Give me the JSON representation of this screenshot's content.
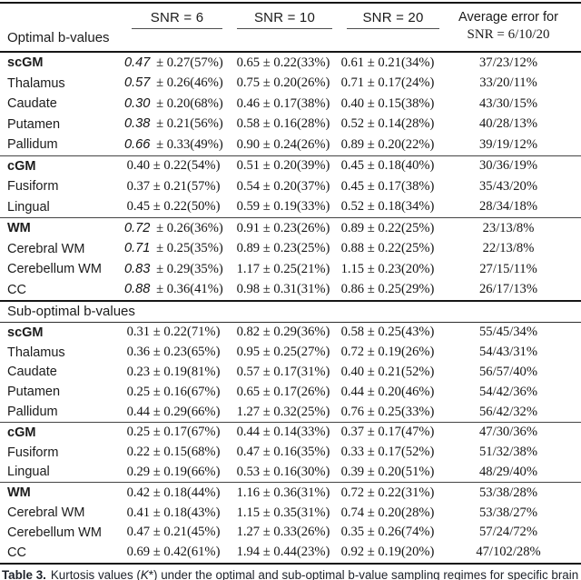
{
  "table": {
    "header": {
      "cols": [
        "SNR = 6",
        "SNR = 10",
        "SNR = 20"
      ],
      "avg_line1": "Average error for",
      "avg_line2": "SNR = 6/10/20"
    },
    "sections": [
      {
        "title": "Optimal b-values",
        "groups": [
          {
            "rows": [
              {
                "label": "scGM",
                "bold": true,
                "it": true,
                "snr6_first": "0.47",
                "snr6_rest": "± 0.27(57%)",
                "snr10": "0.65 ± 0.22(33%)",
                "snr20": "0.61 ± 0.21(34%)",
                "avg": "37/23/12%"
              },
              {
                "label": "Thalamus",
                "bold": false,
                "it": true,
                "snr6_first": "0.57",
                "snr6_rest": "± 0.26(46%)",
                "snr10": "0.75 ± 0.20(26%)",
                "snr20": "0.71 ± 0.17(24%)",
                "avg": "33/20/11%"
              },
              {
                "label": "Caudate",
                "bold": false,
                "it": true,
                "snr6_first": "0.30",
                "snr6_rest": "± 0.20(68%)",
                "snr10": "0.46 ± 0.17(38%)",
                "snr20": "0.40 ± 0.15(38%)",
                "avg": "43/30/15%"
              },
              {
                "label": "Putamen",
                "bold": false,
                "it": true,
                "snr6_first": "0.38",
                "snr6_rest": "± 0.21(56%)",
                "snr10": "0.58 ± 0.16(28%)",
                "snr20": "0.52 ± 0.14(28%)",
                "avg": "40/28/13%"
              },
              {
                "label": "Pallidum",
                "bold": false,
                "it": true,
                "snr6_first": "0.66",
                "snr6_rest": "± 0.33(49%)",
                "snr10": "0.90 ± 0.24(26%)",
                "snr20": "0.89 ± 0.20(22%)",
                "avg": "39/19/12%"
              }
            ]
          },
          {
            "rows": [
              {
                "label": "cGM",
                "bold": true,
                "it": false,
                "snr6_first": "0.40",
                "snr6_rest": "± 0.22(54%)",
                "snr10": "0.51 ± 0.20(39%)",
                "snr20": "0.45 ± 0.18(40%)",
                "avg": "30/36/19%"
              },
              {
                "label": "Fusiform",
                "bold": false,
                "it": false,
                "snr6_first": "0.37",
                "snr6_rest": "± 0.21(57%)",
                "snr10": "0.54 ± 0.20(37%)",
                "snr20": "0.45 ± 0.17(38%)",
                "avg": "35/43/20%"
              },
              {
                "label": "Lingual",
                "bold": false,
                "it": false,
                "snr6_first": "0.45",
                "snr6_rest": "± 0.22(50%)",
                "snr10": "0.59 ± 0.19(33%)",
                "snr20": "0.52 ± 0.18(34%)",
                "avg": "28/34/18%"
              }
            ]
          },
          {
            "rows": [
              {
                "label": "WM",
                "bold": true,
                "it": true,
                "snr6_first": "0.72",
                "snr6_rest": "± 0.26(36%)",
                "snr10": "0.91 ± 0.23(26%)",
                "snr20": "0.89 ± 0.22(25%)",
                "avg": "23/13/8%"
              },
              {
                "label": "Cerebral WM",
                "bold": false,
                "it": true,
                "snr6_first": "0.71",
                "snr6_rest": "± 0.25(35%)",
                "snr10": "0.89 ± 0.23(25%)",
                "snr20": "0.88 ± 0.22(25%)",
                "avg": "22/13/8%"
              },
              {
                "label": "Cerebellum WM",
                "bold": false,
                "it": true,
                "snr6_first": "0.83",
                "snr6_rest": "± 0.29(35%)",
                "snr10": "1.17 ± 0.25(21%)",
                "snr20": "1.15 ± 0.23(20%)",
                "avg": "27/15/11%"
              },
              {
                "label": "CC",
                "bold": false,
                "it": true,
                "snr6_first": "0.88",
                "snr6_rest": "± 0.36(41%)",
                "snr10": "0.98 ± 0.31(31%)",
                "snr20": "0.86 ± 0.25(29%)",
                "avg": "26/17/13%"
              }
            ]
          }
        ]
      },
      {
        "title": "Sub-optimal b-values",
        "groups": [
          {
            "rows": [
              {
                "label": "scGM",
                "bold": true,
                "it": false,
                "snr6_first": "0.31",
                "snr6_rest": "± 0.22(71%)",
                "snr10": "0.82 ± 0.29(36%)",
                "snr20": "0.58 ± 0.25(43%)",
                "avg": "55/45/34%"
              },
              {
                "label": "Thalamus",
                "bold": false,
                "it": false,
                "snr6_first": "0.36",
                "snr6_rest": "± 0.23(65%)",
                "snr10": "0.95 ± 0.25(27%)",
                "snr20": "0.72 ± 0.19(26%)",
                "avg": "54/43/31%"
              },
              {
                "label": "Caudate",
                "bold": false,
                "it": false,
                "snr6_first": "0.23",
                "snr6_rest": "± 0.19(81%)",
                "snr10": "0.57 ± 0.17(31%)",
                "snr20": "0.40 ± 0.21(52%)",
                "avg": "56/57/40%"
              },
              {
                "label": "Putamen",
                "bold": false,
                "it": false,
                "snr6_first": "0.25",
                "snr6_rest": "± 0.16(67%)",
                "snr10": "0.65 ± 0.17(26%)",
                "snr20": "0.44 ± 0.20(46%)",
                "avg": "54/42/36%"
              },
              {
                "label": "Pallidum",
                "bold": false,
                "it": false,
                "snr6_first": "0.44",
                "snr6_rest": "± 0.29(66%)",
                "snr10": "1.27 ± 0.32(25%)",
                "snr20": "0.76 ± 0.25(33%)",
                "avg": "56/42/32%"
              }
            ]
          },
          {
            "rows": [
              {
                "label": "cGM",
                "bold": true,
                "it": false,
                "snr6_first": "0.25",
                "snr6_rest": "± 0.17(67%)",
                "snr10": "0.44 ± 0.14(33%)",
                "snr20": "0.37 ± 0.17(47%)",
                "avg": "47/30/36%"
              },
              {
                "label": "Fusiform",
                "bold": false,
                "it": false,
                "snr6_first": "0.22",
                "snr6_rest": "± 0.15(68%)",
                "snr10": "0.47 ± 0.16(35%)",
                "snr20": "0.33 ± 0.17(52%)",
                "avg": "51/32/38%"
              },
              {
                "label": "Lingual",
                "bold": false,
                "it": false,
                "snr6_first": "0.29",
                "snr6_rest": "± 0.19(66%)",
                "snr10": "0.53 ± 0.16(30%)",
                "snr20": "0.39 ± 0.20(51%)",
                "avg": "48/29/40%"
              }
            ]
          },
          {
            "rows": [
              {
                "label": "WM",
                "bold": true,
                "it": false,
                "snr6_first": "0.42",
                "snr6_rest": "± 0.18(44%)",
                "snr10": "1.16 ± 0.36(31%)",
                "snr20": "0.72 ± 0.22(31%)",
                "avg": "53/38/28%"
              },
              {
                "label": "Cerebral WM",
                "bold": false,
                "it": false,
                "snr6_first": "0.41",
                "snr6_rest": "± 0.18(43%)",
                "snr10": "1.15 ± 0.35(31%)",
                "snr20": "0.74 ± 0.20(28%)",
                "avg": "53/38/27%"
              },
              {
                "label": "Cerebellum WM",
                "bold": false,
                "it": false,
                "snr6_first": "0.47",
                "snr6_rest": "± 0.21(45%)",
                "snr10": "1.27 ± 0.33(26%)",
                "snr20": "0.35 ± 0.26(74%)",
                "avg": "57/24/72%"
              },
              {
                "label": "CC",
                "bold": false,
                "it": false,
                "snr6_first": "0.69",
                "snr6_rest": "± 0.42(61%)",
                "snr10": "1.94 ± 0.44(23%)",
                "snr20": "0.92 ± 0.19(20%)",
                "avg": "47/102/28%"
              }
            ]
          }
        ]
      }
    ]
  },
  "caption": {
    "label": "Table 3.",
    "text_pre": "Kurtosis values (",
    "k": "K",
    "text_post": "*) under the optimal and sub-optimal b-value sampling regimes for specific brain"
  }
}
